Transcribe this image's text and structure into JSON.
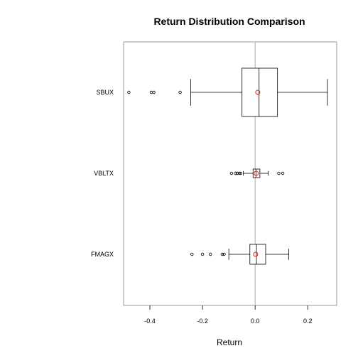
{
  "chart_data": {
    "type": "boxplot",
    "orientation": "horizontal",
    "title": "Return Distribution Comparison",
    "xlabel": "Return",
    "ylabel": "",
    "xlim": [
      -0.5,
      0.31
    ],
    "xticks": [
      -0.4,
      -0.2,
      0.0,
      0.2
    ],
    "xtick_labels": [
      "-0.4",
      "-0.2",
      "0.0",
      "0.2"
    ],
    "reference_line_x": 0.0,
    "grid": false,
    "mean_marker_color": "#e41a1c",
    "box_color": "#000000",
    "categories": [
      "SBUX",
      "VBLTX",
      "FMAGX"
    ],
    "boxes": [
      {
        "name": "SBUX",
        "whisker_low": -0.245,
        "q1": -0.05,
        "median": 0.015,
        "q3": 0.085,
        "whisker_high": 0.275,
        "mean": 0.01,
        "outliers": [
          -0.48,
          -0.395,
          -0.385,
          -0.285
        ]
      },
      {
        "name": "VBLTX",
        "whisker_low": -0.045,
        "q1": -0.008,
        "median": 0.003,
        "q3": 0.018,
        "whisker_high": 0.05,
        "mean": 0.004,
        "outliers": [
          -0.09,
          -0.075,
          -0.068,
          -0.06,
          -0.055,
          0.09,
          0.105
        ]
      },
      {
        "name": "FMAGX",
        "whisker_low": -0.1,
        "q1": -0.02,
        "median": 0.005,
        "q3": 0.04,
        "whisker_high": 0.128,
        "mean": 0.002,
        "outliers": [
          -0.24,
          -0.2,
          -0.17,
          -0.125,
          -0.118
        ]
      }
    ]
  }
}
